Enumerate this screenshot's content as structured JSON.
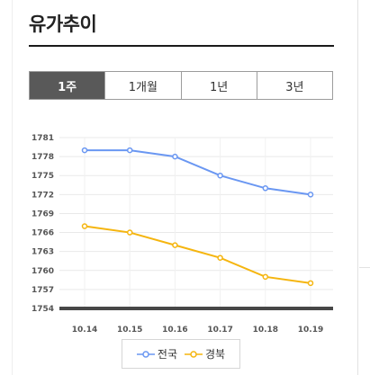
{
  "title": "유가추이",
  "tabs": [
    {
      "label": "1주",
      "active": true
    },
    {
      "label": "1개월",
      "active": false
    },
    {
      "label": "1년",
      "active": false
    },
    {
      "label": "3년",
      "active": false
    }
  ],
  "colors": {
    "series_1": "#6a97f2",
    "series_2": "#f5b50f",
    "axis": "#474747",
    "grid": "#e9e9e9",
    "active_tab": "#595959"
  },
  "chart_data": {
    "type": "line",
    "title": "",
    "xlabel": "",
    "ylabel": "",
    "categories": [
      "10.14",
      "10.15",
      "10.16",
      "10.17",
      "10.18",
      "10.19"
    ],
    "series": [
      {
        "name": "전국",
        "values": [
          1779,
          1779,
          1778,
          1775,
          1773,
          1772
        ]
      },
      {
        "name": "경북",
        "values": [
          1767,
          1766,
          1764,
          1762,
          1759,
          1758
        ]
      }
    ],
    "ylim": [
      1754,
      1781
    ],
    "yticks": [
      1781,
      1778,
      1775,
      1772,
      1769,
      1766,
      1763,
      1760,
      1757,
      1754
    ],
    "grid": true,
    "legend_position": "bottom-center"
  }
}
